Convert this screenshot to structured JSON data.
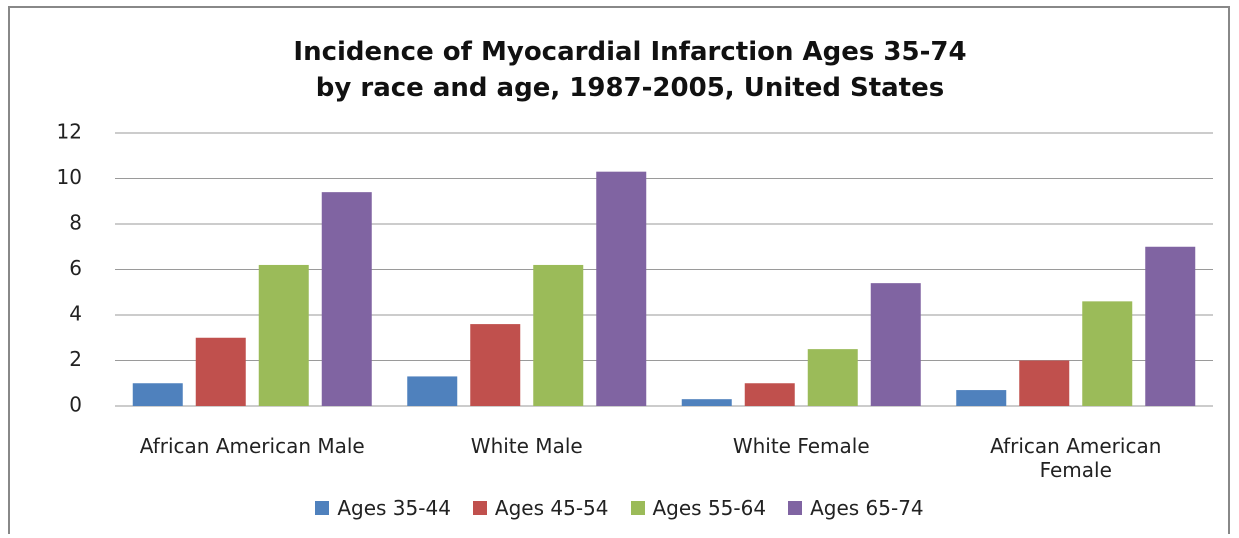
{
  "chart_data": {
    "type": "bar",
    "title": "Incidence of Myocardial Infarction Ages 35-74 by race and age, 1987-2005, United States",
    "categories": [
      "African American Male",
      "White Male",
      "White Female",
      "African American Female"
    ],
    "series": [
      {
        "name": "Ages 35-44",
        "color": "#4f81bd",
        "values": [
          1.0,
          1.3,
          0.3,
          0.7
        ]
      },
      {
        "name": "Ages 45-54",
        "color": "#c0504d",
        "values": [
          3.0,
          3.6,
          1.0,
          2.0
        ]
      },
      {
        "name": "Ages 55-64",
        "color": "#9bbb59",
        "values": [
          6.2,
          6.2,
          2.5,
          4.6
        ]
      },
      {
        "name": "Ages 65-74",
        "color": "#8064a2",
        "values": [
          9.4,
          10.3,
          5.4,
          7.0
        ]
      }
    ],
    "ylim": [
      0,
      12
    ],
    "yticks": [
      0,
      2,
      4,
      6,
      8,
      10,
      12
    ],
    "grid": true,
    "legend": "bottom"
  }
}
